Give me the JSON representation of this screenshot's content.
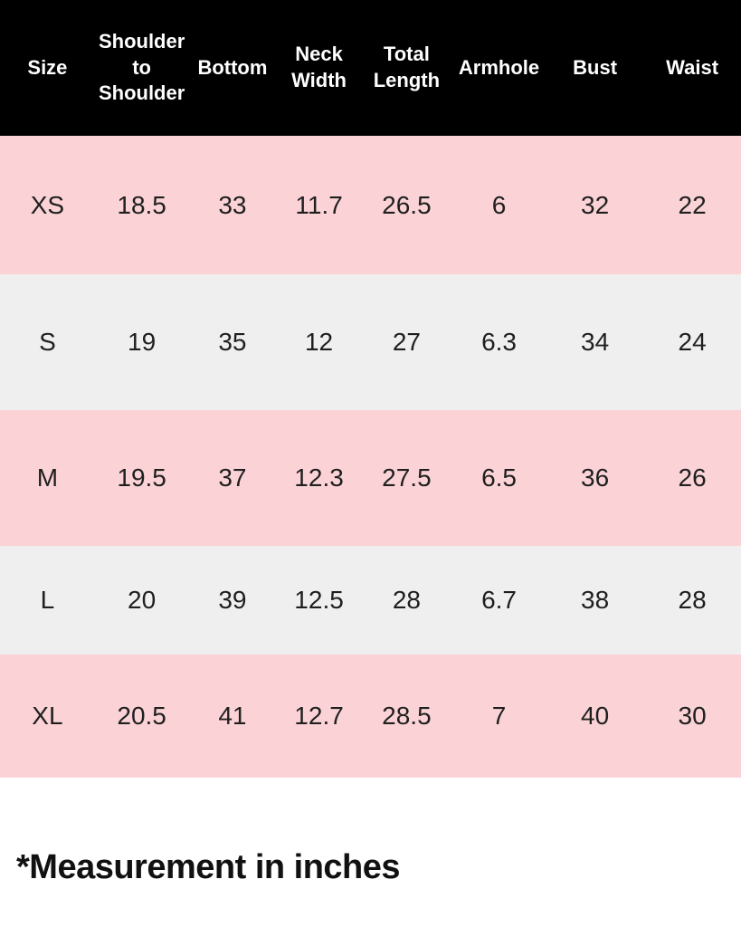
{
  "chart_data": {
    "type": "table",
    "columns": [
      "Size",
      "Shoulder to Shoulder",
      "Bottom",
      "Neck Width",
      "Total Length",
      "Armhole",
      "Bust",
      "Waist"
    ],
    "rows": [
      [
        "XS",
        "18.5",
        "33",
        "11.7",
        "26.5",
        "6",
        "32",
        "22"
      ],
      [
        "S",
        "19",
        "35",
        "12",
        "27",
        "6.3",
        "34",
        "24"
      ],
      [
        "M",
        "19.5",
        "37",
        "12.3",
        "27.5",
        "6.5",
        "36",
        "26"
      ],
      [
        "L",
        "20",
        "39",
        "12.5",
        "28",
        "6.7",
        "38",
        "28"
      ],
      [
        "XL",
        "20.5",
        "41",
        "12.7",
        "28.5",
        "7",
        "40",
        "30"
      ]
    ],
    "row_backgrounds": [
      "pink",
      "gray",
      "pink",
      "gray",
      "pink"
    ],
    "note": "*Measurement in inches"
  },
  "footer": {
    "note": "*Measurement in inches"
  },
  "colors": {
    "header-bg": "#000000",
    "header-text": "#ffffff",
    "row-pink": "#fbd3d6",
    "row-gray": "#f0efef",
    "cell-text": "#1f1f1f",
    "page-bg": "#ffffff"
  }
}
